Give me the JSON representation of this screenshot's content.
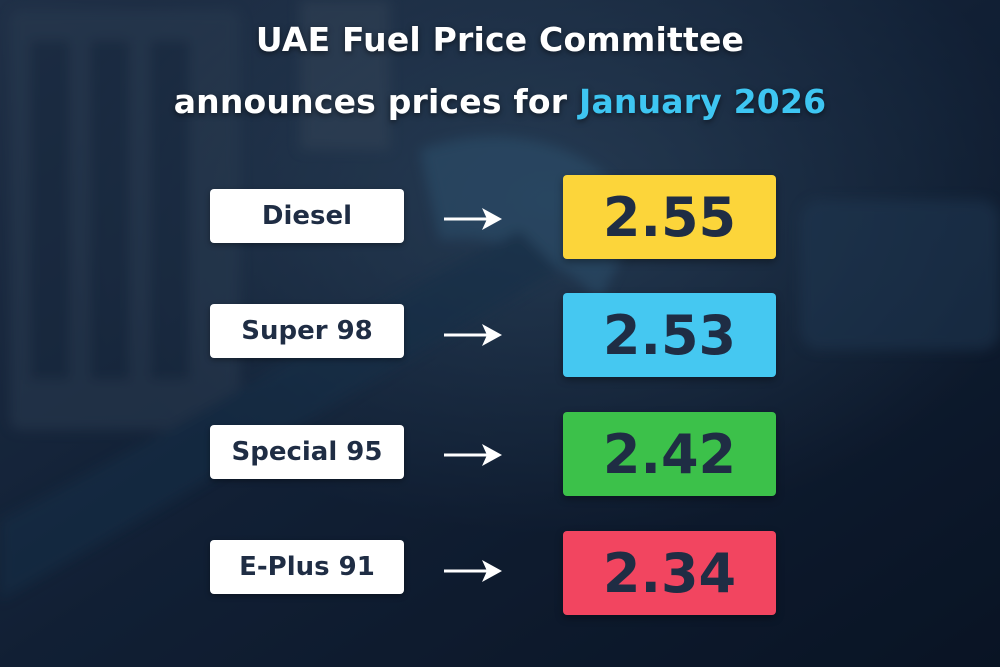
{
  "header": {
    "line1": "UAE Fuel Price Committee",
    "line2_prefix": "announces prices for ",
    "line2_highlight": "January 2026"
  },
  "fuels": [
    {
      "name": "Diesel",
      "price": "2.55",
      "color": "#fcd53a"
    },
    {
      "name": "Super 98",
      "price": "2.53",
      "color": "#45c8f1"
    },
    {
      "name": "Special 95",
      "price": "2.42",
      "color": "#3cc14a"
    },
    {
      "name": "E-Plus 91",
      "price": "2.34",
      "color": "#f24560"
    }
  ],
  "icons": {
    "arrow": "right-arrow-icon"
  }
}
